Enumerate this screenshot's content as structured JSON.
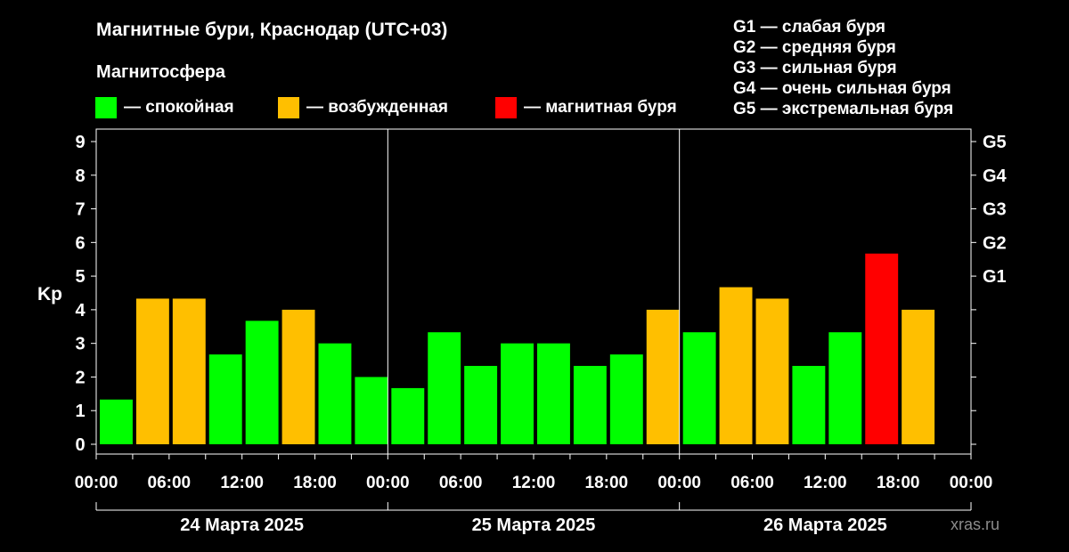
{
  "colors": {
    "background": "#000000",
    "quiet": "#00ff00",
    "excited": "#ffbf00",
    "storm": "#ff0000",
    "axis": "#ffffff",
    "watermark": "#8c8c8c"
  },
  "legend": {
    "title": "Магнитосфера",
    "items": [
      {
        "label": "— спокойная",
        "color": "#00ff00"
      },
      {
        "label": "— возбужденная",
        "color": "#ffbf00"
      },
      {
        "label": "— магнитная буря",
        "color": "#ff0000"
      }
    ],
    "g_scale": [
      "G1 — слабая буря",
      "G2 — средняя буря",
      "G3 — сильная буря",
      "G4 — очень сильная буря",
      "G5 — экстремальная буря"
    ]
  },
  "watermark": "xras.ru",
  "chart_data": {
    "type": "bar",
    "title": "Магнитные бури, Краснодар (UTC+03)",
    "ylabel": "Kp",
    "ylim": [
      0,
      9
    ],
    "y_ticks": [
      "0",
      "1",
      "2",
      "3",
      "4",
      "5",
      "6",
      "7",
      "8",
      "9"
    ],
    "right_ticks": [
      {
        "label": "G1",
        "value": 5
      },
      {
        "label": "G2",
        "value": 6
      },
      {
        "label": "G3",
        "value": 7
      },
      {
        "label": "G4",
        "value": 8
      },
      {
        "label": "G5",
        "value": 9
      }
    ],
    "x_tick_labels": [
      "00:00",
      "06:00",
      "12:00",
      "18:00",
      "00:00",
      "06:00",
      "12:00",
      "18:00",
      "00:00",
      "06:00",
      "12:00",
      "18:00",
      "00:00"
    ],
    "days": [
      "24 Марта 2025",
      "25 Марта 2025",
      "26 Марта 2025"
    ],
    "interval_hours": 3,
    "values": [
      1.33,
      4.33,
      4.33,
      2.67,
      3.67,
      4.0,
      3.0,
      2.0,
      1.67,
      3.33,
      2.33,
      3.0,
      3.0,
      2.33,
      2.67,
      4.0,
      3.33,
      4.67,
      4.33,
      2.33,
      3.33,
      5.67,
      4.0
    ],
    "levels": [
      "quiet",
      "excited",
      "excited",
      "quiet",
      "quiet",
      "excited",
      "quiet",
      "quiet",
      "quiet",
      "quiet",
      "quiet",
      "quiet",
      "quiet",
      "quiet",
      "quiet",
      "excited",
      "quiet",
      "excited",
      "excited",
      "quiet",
      "quiet",
      "storm",
      "excited"
    ],
    "legend_position": "top"
  }
}
